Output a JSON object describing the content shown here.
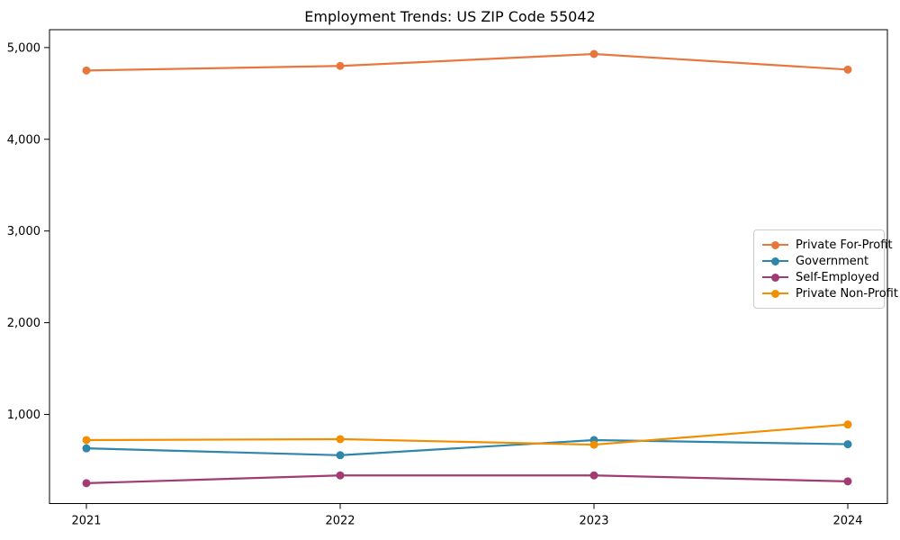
{
  "chart_data": {
    "type": "line",
    "title": "Employment Trends: US ZIP Code 55042",
    "categories": [
      "2021",
      "2022",
      "2023",
      "2024"
    ],
    "series": [
      {
        "name": "Private For-Profit",
        "color": "#E8773D",
        "values": [
          4750,
          4800,
          4930,
          4760
        ]
      },
      {
        "name": "Government",
        "color": "#2E86AB",
        "values": [
          630,
          555,
          720,
          675
        ]
      },
      {
        "name": "Self-Employed",
        "color": "#A23B72",
        "values": [
          250,
          335,
          335,
          270
        ]
      },
      {
        "name": "Private Non-Profit",
        "color": "#F18F01",
        "values": [
          720,
          730,
          670,
          890
        ]
      }
    ],
    "xlabel": "",
    "ylabel": "",
    "ylim": [
      0,
      5200
    ],
    "yticks": [
      1000,
      2000,
      3000,
      4000,
      5000
    ],
    "ytick_labels": [
      "1,000",
      "2,000",
      "3,000",
      "4,000",
      "5,000"
    ],
    "legend_position": "center-right",
    "grid": false,
    "marker": "circle",
    "frame_color": "#000000"
  }
}
